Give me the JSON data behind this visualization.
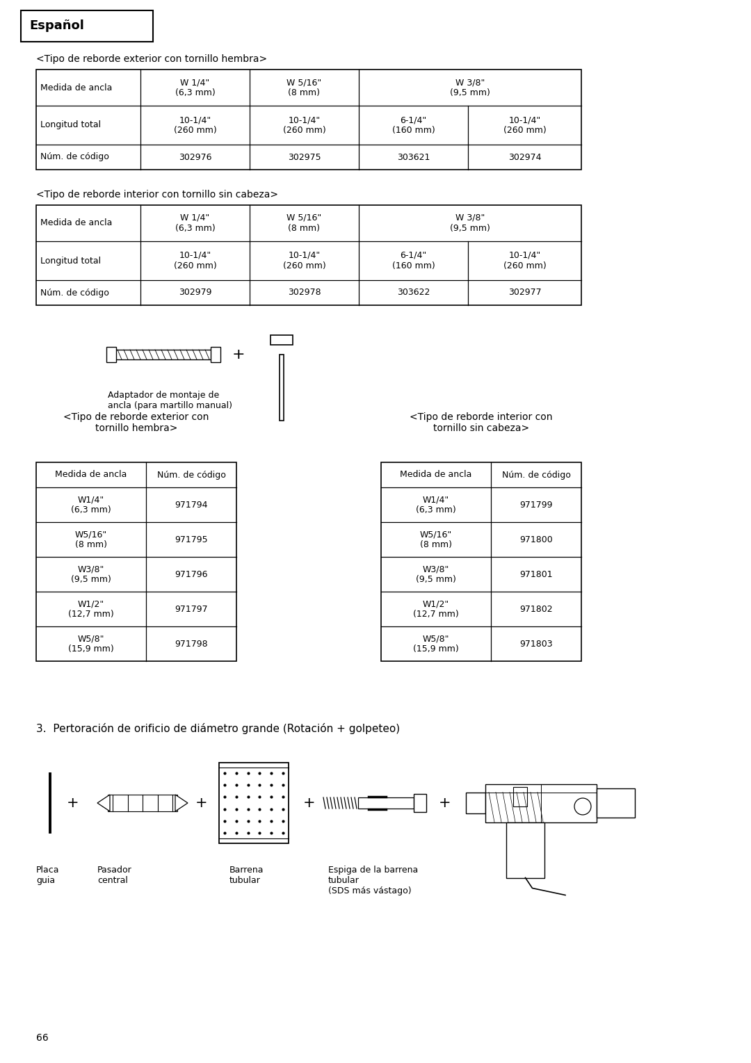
{
  "title_header": "Español",
  "table1_title": "<Tipo de reborde exterior con tornillo hembra>",
  "table2_title": "<Tipo de reborde interior con tornillo sin cabeza>",
  "adaptor_label": "Adaptador de montaje de\nancla (para martillo manual)",
  "table3_title": "<Tipo de reborde exterior con\ntornillo hembra>",
  "table4_title": "<Tipo de reborde interior con\ntornillo sin cabeza>",
  "section3_title": "3.  Pertoración de orificio de diámetro grande (Rotación + golpeteo)",
  "labels_bottom": [
    "Placa\nguia",
    "Pasador\ncentral",
    "Barrena\ntubular",
    "Espiga de la barrena\ntubular\n(SDS más vástago)"
  ],
  "page_number": "66",
  "bg_color": "#ffffff",
  "text_color": "#000000"
}
